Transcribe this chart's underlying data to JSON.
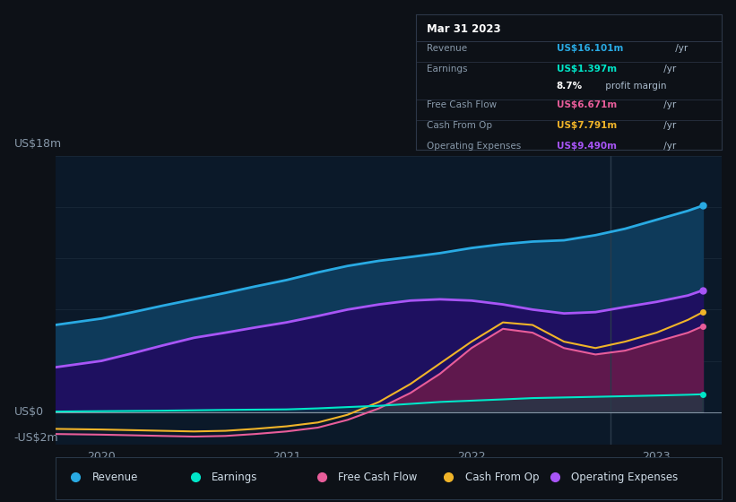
{
  "bg_color": "#0d1117",
  "plot_bg_color": "#0b1929",
  "grid_color": "#1a2a3a",
  "text_color": "#8899aa",
  "ylabel_text": "US$18m",
  "ylabel_bottom": "-US$2m",
  "ylabel_zero": "US$0",
  "x_ticks": [
    "2020",
    "2021",
    "2022",
    "2023"
  ],
  "x_tick_pos": [
    2020.0,
    2021.0,
    2022.0,
    2023.0
  ],
  "legend_items": [
    {
      "label": "Revenue",
      "color": "#29aae3"
    },
    {
      "label": "Earnings",
      "color": "#00e6c8"
    },
    {
      "label": "Free Cash Flow",
      "color": "#e85d9a"
    },
    {
      "label": "Cash From Op",
      "color": "#f0b429"
    },
    {
      "label": "Operating Expenses",
      "color": "#a855f7"
    }
  ],
  "tooltip": {
    "date": "Mar 31 2023",
    "rows": [
      {
        "label": "Revenue",
        "value": "US$16.101m",
        "suffix": " /yr",
        "value_color": "#29aae3",
        "divider": true
      },
      {
        "label": "Earnings",
        "value": "US$1.397m",
        "suffix": " /yr",
        "value_color": "#00e6c8",
        "divider": false
      },
      {
        "label": "",
        "value": "8.7%",
        "suffix": " profit margin",
        "value_color": "#ffffff",
        "divider": true
      },
      {
        "label": "Free Cash Flow",
        "value": "US$6.671m",
        "suffix": " /yr",
        "value_color": "#e85d9a",
        "divider": true
      },
      {
        "label": "Cash From Op",
        "value": "US$7.791m",
        "suffix": " /yr",
        "value_color": "#f0b429",
        "divider": true
      },
      {
        "label": "Operating Expenses",
        "value": "US$9.490m",
        "suffix": " /yr",
        "value_color": "#a855f7",
        "divider": false
      }
    ]
  },
  "x": [
    2019.75,
    2020.0,
    2020.17,
    2020.33,
    2020.5,
    2020.67,
    2020.83,
    2021.0,
    2021.17,
    2021.33,
    2021.5,
    2021.67,
    2021.83,
    2022.0,
    2022.17,
    2022.33,
    2022.5,
    2022.67,
    2022.83,
    2023.0,
    2023.17,
    2023.25
  ],
  "revenue": [
    6.8,
    7.3,
    7.8,
    8.3,
    8.8,
    9.3,
    9.8,
    10.3,
    10.9,
    11.4,
    11.8,
    12.1,
    12.4,
    12.8,
    13.1,
    13.3,
    13.4,
    13.8,
    14.3,
    15.0,
    15.7,
    16.1
  ],
  "earnings": [
    0.05,
    0.08,
    0.1,
    0.12,
    0.15,
    0.18,
    0.2,
    0.22,
    0.3,
    0.4,
    0.5,
    0.65,
    0.8,
    0.9,
    1.0,
    1.1,
    1.15,
    1.2,
    1.25,
    1.3,
    1.36,
    1.4
  ],
  "free_cash_flow": [
    -1.7,
    -1.75,
    -1.8,
    -1.85,
    -1.9,
    -1.85,
    -1.7,
    -1.5,
    -1.2,
    -0.6,
    0.3,
    1.5,
    3.0,
    5.0,
    6.5,
    6.2,
    5.0,
    4.5,
    4.8,
    5.5,
    6.2,
    6.7
  ],
  "cash_from_op": [
    -1.3,
    -1.35,
    -1.4,
    -1.45,
    -1.5,
    -1.45,
    -1.3,
    -1.1,
    -0.8,
    -0.2,
    0.8,
    2.2,
    3.8,
    5.5,
    7.0,
    6.8,
    5.5,
    5.0,
    5.5,
    6.2,
    7.2,
    7.8
  ],
  "operating_expenses": [
    3.5,
    4.0,
    4.6,
    5.2,
    5.8,
    6.2,
    6.6,
    7.0,
    7.5,
    8.0,
    8.4,
    8.7,
    8.8,
    8.7,
    8.4,
    8.0,
    7.7,
    7.8,
    8.2,
    8.6,
    9.1,
    9.5
  ],
  "vline_x": 2022.75,
  "ylim": [
    -2.5,
    20.0
  ],
  "xlim": [
    2019.75,
    2023.35
  ]
}
